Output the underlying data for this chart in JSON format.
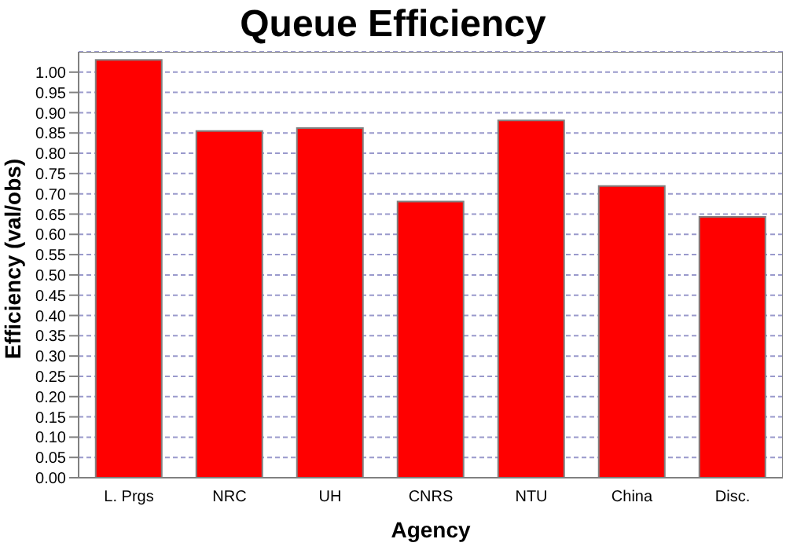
{
  "chart_data": {
    "type": "bar",
    "title": "Queue Efficiency",
    "xlabel": "Agency",
    "ylabel": "Efficiency (val/obs)",
    "categories": [
      "L. Prgs",
      "NRC",
      "UH",
      "CNRS",
      "NTU",
      "China",
      "Disc."
    ],
    "values": [
      1.03,
      0.855,
      0.862,
      0.681,
      0.881,
      0.719,
      0.643
    ],
    "color": "#ff0000",
    "ylim": [
      0,
      1.05
    ],
    "yticks": [
      {
        "value": 0,
        "label": "0.00"
      },
      {
        "value": 0.05,
        "label": "0.05"
      },
      {
        "value": 0.1,
        "label": "0.10"
      },
      {
        "value": 0.15,
        "label": "0.15"
      },
      {
        "value": 0.2,
        "label": "0.20"
      },
      {
        "value": 0.25,
        "label": "0.25"
      },
      {
        "value": 0.3,
        "label": "0.30"
      },
      {
        "value": 0.35,
        "label": "0.35"
      },
      {
        "value": 0.4,
        "label": "0.40"
      },
      {
        "value": 0.45,
        "label": "0.45"
      },
      {
        "value": 0.5,
        "label": "0.50"
      },
      {
        "value": 0.55,
        "label": "0.55"
      },
      {
        "value": 0.6,
        "label": "0.60"
      },
      {
        "value": 0.65,
        "label": "0.65"
      },
      {
        "value": 0.7,
        "label": "0.70"
      },
      {
        "value": 0.75,
        "label": "0.75"
      },
      {
        "value": 0.8,
        "label": "0.80"
      },
      {
        "value": 0.85,
        "label": "0.85"
      },
      {
        "value": 0.9,
        "label": "0.90"
      },
      {
        "value": 0.95,
        "label": "0.95"
      },
      {
        "value": 1.0,
        "label": "1.00"
      }
    ],
    "grid": "y"
  }
}
